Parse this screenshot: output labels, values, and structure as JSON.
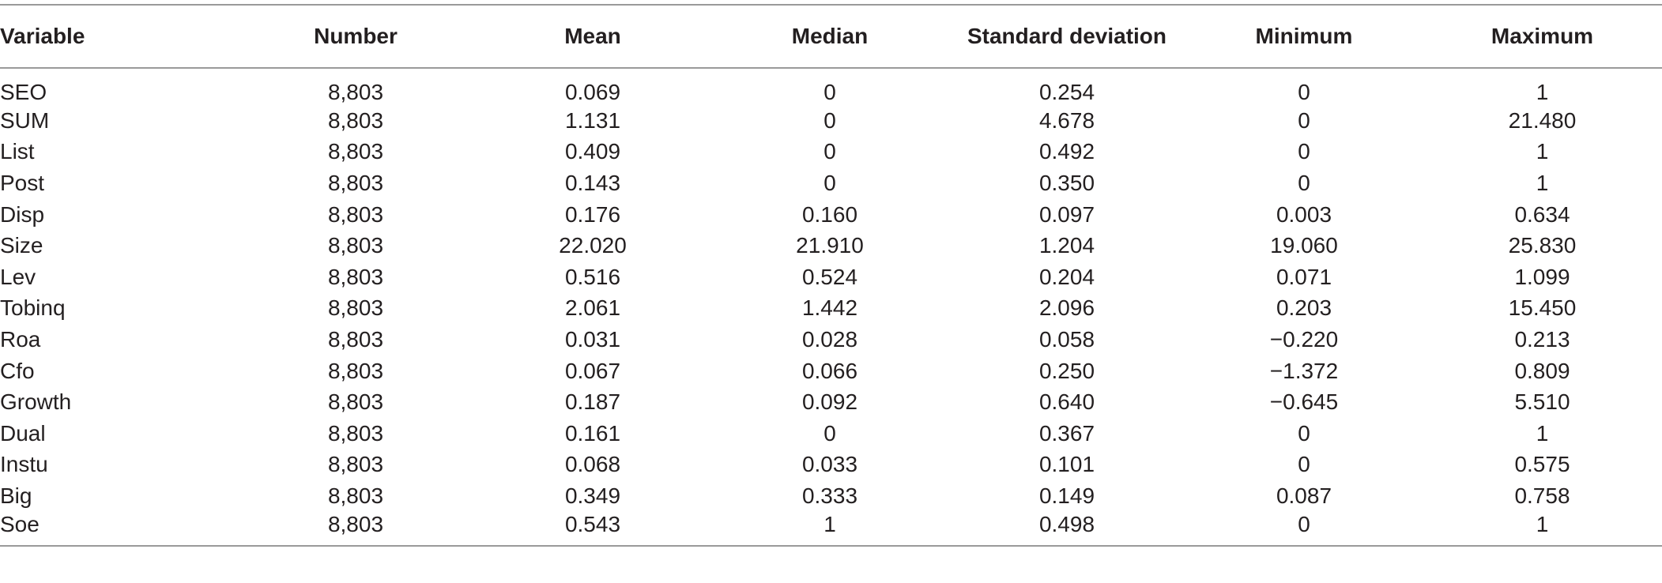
{
  "table": {
    "headers": [
      "Variable",
      "Number",
      "Mean",
      "Median",
      "Standard deviation",
      "Minimum",
      "Maximum"
    ],
    "rows": [
      [
        "SEO",
        "8,803",
        "0.069",
        "0",
        "0.254",
        "0",
        "1"
      ],
      [
        "SUM",
        "8,803",
        "1.131",
        "0",
        "4.678",
        "0",
        "21.480"
      ],
      [
        "List",
        "8,803",
        "0.409",
        "0",
        "0.492",
        "0",
        "1"
      ],
      [
        "Post",
        "8,803",
        "0.143",
        "0",
        "0.350",
        "0",
        "1"
      ],
      [
        "Disp",
        "8,803",
        "0.176",
        "0.160",
        "0.097",
        "0.003",
        "0.634"
      ],
      [
        "Size",
        "8,803",
        "22.020",
        "21.910",
        "1.204",
        "19.060",
        "25.830"
      ],
      [
        "Lev",
        "8,803",
        "0.516",
        "0.524",
        "0.204",
        "0.071",
        "1.099"
      ],
      [
        "Tobinq",
        "8,803",
        "2.061",
        "1.442",
        "2.096",
        "0.203",
        "15.450"
      ],
      [
        "Roa",
        "8,803",
        "0.031",
        "0.028",
        "0.058",
        "−0.220",
        "0.213"
      ],
      [
        "Cfo",
        "8,803",
        "0.067",
        "0.066",
        "0.250",
        "−1.372",
        "0.809"
      ],
      [
        "Growth",
        "8,803",
        "0.187",
        "0.092",
        "0.640",
        "−0.645",
        "5.510"
      ],
      [
        "Dual",
        "8,803",
        "0.161",
        "0",
        "0.367",
        "0",
        "1"
      ],
      [
        "Instu",
        "8,803",
        "0.068",
        "0.033",
        "0.101",
        "0",
        "0.575"
      ],
      [
        "Big",
        "8,803",
        "0.349",
        "0.333",
        "0.149",
        "0.087",
        "0.758"
      ],
      [
        "Soe",
        "8,803",
        "0.543",
        "1",
        "0.498",
        "0",
        "1"
      ]
    ]
  }
}
